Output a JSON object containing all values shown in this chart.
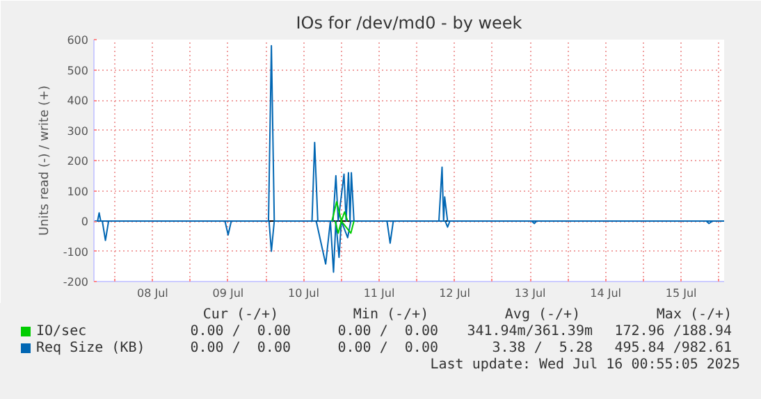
{
  "chart_data": {
    "type": "line",
    "title": "IOs for /dev/md0 - by week",
    "ylabel": "Units read (-) / write (+)",
    "xlim": [
      "2025-07-07T17:20",
      "2025-07-16T01:40"
    ],
    "ylim": [
      -200,
      600
    ],
    "yticks": [
      -200,
      -100,
      0,
      100,
      200,
      300,
      400,
      500,
      600
    ],
    "xticks": [
      {
        "value": "2025-07-08",
        "label": null
      },
      {
        "value": "2025-07-08T12:00",
        "label": "08 Jul"
      },
      {
        "value": "2025-07-09",
        "label": null
      },
      {
        "value": "2025-07-09T12:00",
        "label": "09 Jul"
      },
      {
        "value": "2025-07-10",
        "label": null
      },
      {
        "value": "2025-07-10T12:00",
        "label": "10 Jul"
      },
      {
        "value": "2025-07-11",
        "label": null
      },
      {
        "value": "2025-07-11T12:00",
        "label": "11 Jul"
      },
      {
        "value": "2025-07-12",
        "label": null
      },
      {
        "value": "2025-07-12T12:00",
        "label": "12 Jul"
      },
      {
        "value": "2025-07-13",
        "label": null
      },
      {
        "value": "2025-07-13T12:00",
        "label": "13 Jul"
      },
      {
        "value": "2025-07-14",
        "label": null
      },
      {
        "value": "2025-07-14T12:00",
        "label": "14 Jul"
      },
      {
        "value": "2025-07-15",
        "label": null
      },
      {
        "value": "2025-07-15T12:00",
        "label": "15 Jul"
      },
      {
        "value": "2025-07-16",
        "label": null
      }
    ],
    "grid": true,
    "legend": "bottom",
    "marker": "none",
    "line_style": "solid",
    "ref_lines": [
      {
        "axis": "y",
        "value": 0,
        "color": "#000000"
      }
    ],
    "series": [
      {
        "name": "IO/sec",
        "color": "#00cc00",
        "x": [
          "2025-07-10T21:00",
          "2025-07-10T22:30",
          "2025-07-11T00:00",
          "2025-07-11T01:00",
          "2025-07-11T02:00"
        ],
        "values": [
          0,
          64,
          0,
          30,
          0
        ]
      },
      {
        "color": "#00cc00",
        "x": [
          "2025-07-10T22:00",
          "2025-07-10T23:00",
          "2025-07-11T00:00",
          "2025-07-11T03:00",
          "2025-07-11T04:00"
        ],
        "values": [
          0,
          -40,
          0,
          -40,
          0
        ]
      },
      {
        "name": "Req Size (KB)",
        "color": "#0066b3",
        "x": [
          "2025-07-07T17:20",
          "2025-07-07T18:30",
          "2025-07-07T19:00",
          "2025-07-07T19:30",
          "2025-07-10T00:50",
          "2025-07-10T01:45",
          "2025-07-10T02:40",
          "2025-07-10T14:40",
          "2025-07-10T15:30",
          "2025-07-10T16:30",
          "2025-07-10T21:20",
          "2025-07-10T22:15",
          "2025-07-10T23:00",
          "2025-07-11T00:50",
          "2025-07-11T01:30",
          "2025-07-11T02:15",
          "2025-07-11T02:45",
          "2025-07-11T03:10",
          "2025-07-11T04:00",
          "2025-07-12T07:00",
          "2025-07-12T08:00",
          "2025-07-12T08:30",
          "2025-07-12T08:50",
          "2025-07-12T09:45",
          "2025-07-16T01:40"
        ],
        "values": [
          0,
          0,
          27,
          0,
          0,
          580,
          0,
          0,
          260,
          0,
          0,
          150,
          0,
          155,
          0,
          160,
          0,
          160,
          0,
          0,
          178,
          0,
          80,
          0,
          0
        ]
      },
      {
        "color": "#0066b3",
        "x": [
          "2025-07-07T17:20",
          "2025-07-07T20:00",
          "2025-07-07T21:00",
          "2025-07-07T22:00",
          "2025-07-09T11:00",
          "2025-07-09T12:00",
          "2025-07-09T13:00",
          "2025-07-10T01:00",
          "2025-07-10T01:45",
          "2025-07-10T02:40",
          "2025-07-10T16:00",
          "2025-07-10T19:00",
          "2025-07-10T20:30",
          "2025-07-10T21:30",
          "2025-07-10T22:15",
          "2025-07-10T23:15",
          "2025-07-11T00:00",
          "2025-07-11T02:00",
          "2025-07-11T03:00",
          "2025-07-11T14:30",
          "2025-07-11T15:30",
          "2025-07-11T16:30",
          "2025-07-12T09:00",
          "2025-07-12T09:45",
          "2025-07-12T10:30",
          "2025-07-13T12:30",
          "2025-07-13T13:20",
          "2025-07-13T14:00",
          "2025-07-15T20:00",
          "2025-07-15T20:50",
          "2025-07-15T22:00",
          "2025-07-16T01:40"
        ],
        "values": [
          0,
          0,
          -64,
          0,
          0,
          -46,
          0,
          0,
          -100,
          0,
          0,
          -142,
          0,
          -169,
          0,
          -120,
          0,
          -55,
          0,
          0,
          -73,
          0,
          0,
          -20,
          0,
          0,
          -8,
          0,
          0,
          -8,
          0,
          0
        ]
      }
    ],
    "annotations": [
      "Cur (-/+)",
      "Min (-/+)",
      "Avg (-/+)",
      "Max (-/+)",
      "0.00 /  0.00",
      "0.00 /  0.00",
      "341.94m/361.39m",
      "172.96 /188.94",
      "0.00 /  0.00",
      "0.00 /  0.00",
      "3.38 /  5.28",
      "495.84 /982.61",
      "Last update: Wed Jul 16 00:55:05 2025"
    ]
  }
}
